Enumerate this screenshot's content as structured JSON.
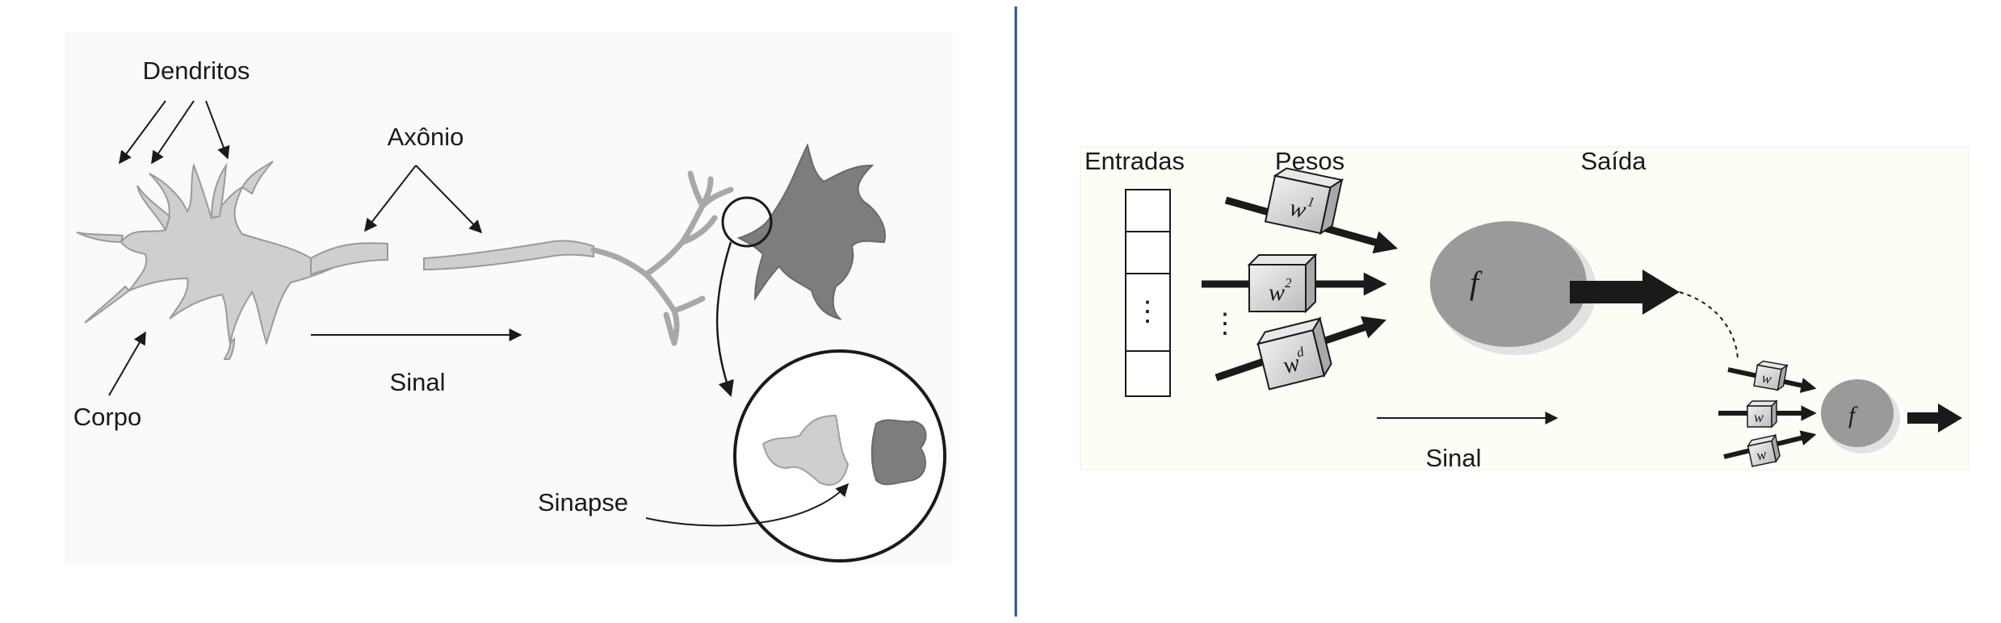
{
  "biological": {
    "labels": {
      "dendrites": "Dendritos",
      "axon": "Axônio",
      "body": "Corpo",
      "signal": "Sinal",
      "synapse": "Sinapse"
    }
  },
  "artificial": {
    "labels": {
      "inputs": "Entradas",
      "weights": "Pesos",
      "output": "Saída",
      "signal": "Sinal"
    },
    "function_symbol": "f",
    "weights_main": [
      {
        "base": "w",
        "sup": "1"
      },
      {
        "base": "w",
        "sup": "2"
      },
      {
        "base": "w",
        "sup": "d"
      }
    ],
    "weights_small": [
      "w",
      "w",
      "w"
    ],
    "ellipsis_vertical": "⋮"
  },
  "colors": {
    "divider": "#2a4f8c",
    "cell_light": "#cfcfcf",
    "cell_dark": "#7a7a7a",
    "node_gray": "#9a9a9a",
    "arrow": "#1a1a1a"
  }
}
